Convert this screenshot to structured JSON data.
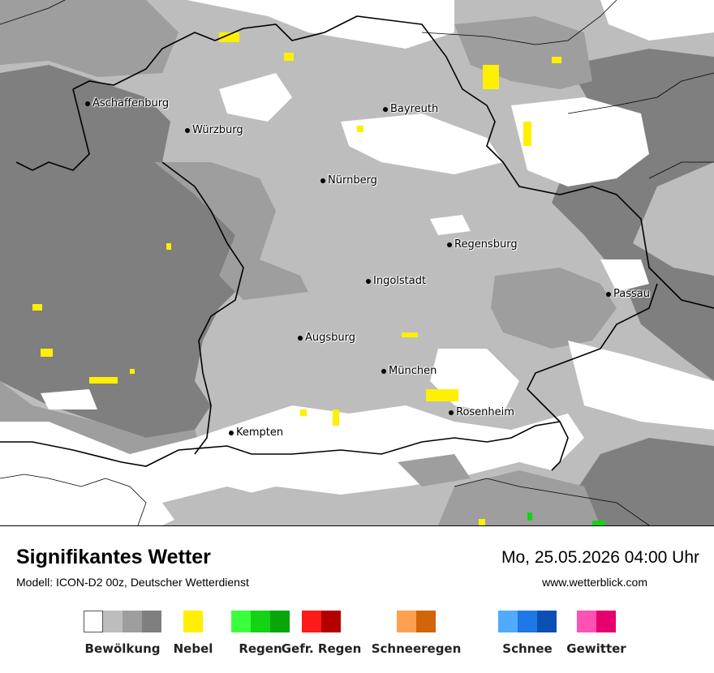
{
  "map": {
    "cities": [
      {
        "name": "Aschaffenburg"
      },
      {
        "name": "Würzburg"
      },
      {
        "name": "Bayreuth"
      },
      {
        "name": "Nürnberg"
      },
      {
        "name": "Regensburg"
      },
      {
        "name": "Ingolstadt"
      },
      {
        "name": "Passau"
      },
      {
        "name": "Augsburg"
      },
      {
        "name": "München"
      },
      {
        "name": "Rosenheim"
      },
      {
        "name": "Kempten"
      }
    ]
  },
  "header": {
    "title": "Signifikantes Wetter",
    "model": "Modell: ICON-D2 00z, Deutscher Wetterdienst",
    "datetime": "Mo, 25.05.2026 04:00 Uhr",
    "website": "www.wetterblick.com"
  },
  "legend": [
    {
      "label": "Bewölkung",
      "colors": [
        "#ffffff",
        "#bdbdbd",
        "#9e9e9e",
        "#7f7f7f"
      ]
    },
    {
      "label": "Nebel",
      "colors": [
        "#ffef00"
      ]
    },
    {
      "label": "Regen",
      "colors": [
        "#3cff3c",
        "#14d214",
        "#0aa50a"
      ]
    },
    {
      "label": "Gefr. Regen",
      "colors": [
        "#ff1a1a",
        "#b40000"
      ]
    },
    {
      "label": "Schneeregen",
      "colors": [
        "#ffa050",
        "#d2640a"
      ]
    },
    {
      "label": "Schnee",
      "colors": [
        "#50aaff",
        "#1e78e6",
        "#0a50b4"
      ]
    },
    {
      "label": "Gewitter",
      "colors": [
        "#ff50b4",
        "#e6006e"
      ]
    }
  ]
}
